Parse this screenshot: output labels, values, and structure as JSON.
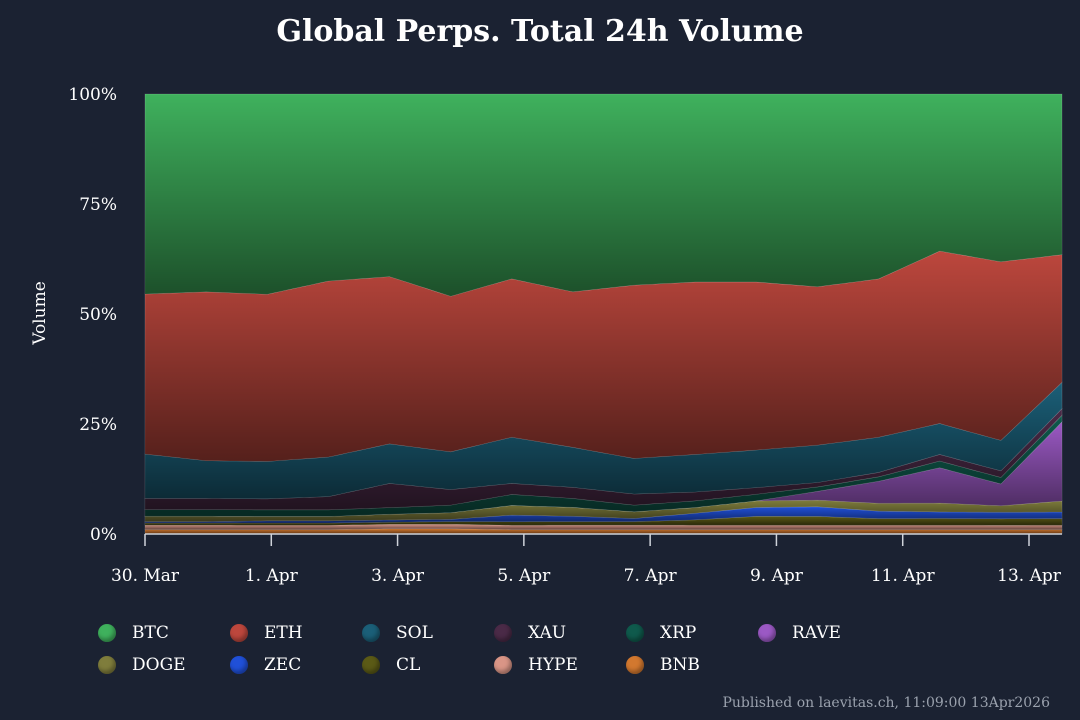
{
  "chart_data": {
    "type": "area",
    "stacked": true,
    "normalized": true,
    "title": "Global Perps. Total 24h Volume",
    "ylabel": "Volume",
    "ylim": [
      0,
      100
    ],
    "yticks": [
      "0%",
      "25%",
      "50%",
      "75%",
      "100%"
    ],
    "xticks": [
      "30. Mar",
      "1. Apr",
      "3. Apr",
      "5. Apr",
      "7. Apr",
      "9. Apr",
      "11. Apr",
      "13. Apr"
    ],
    "x": [
      "30. Mar",
      "31. Mar",
      "1. Apr",
      "2. Apr",
      "3. Apr",
      "4. Apr",
      "5. Apr",
      "6. Apr",
      "7. Apr",
      "8. Apr",
      "9. Apr",
      "10. Apr",
      "11. Apr",
      "12. Apr",
      "13. Apr",
      "13. Apr 11:00"
    ],
    "legend_position": "bottom",
    "series": [
      {
        "name": "BNB",
        "color": "#d2782f",
        "values": [
          1.0,
          1.0,
          1.0,
          1.0,
          1.2,
          1.2,
          1.0,
          1.0,
          1.0,
          1.0,
          1.0,
          1.0,
          1.0,
          1.0,
          1.0,
          1.0
        ]
      },
      {
        "name": "HYPE",
        "color": "#d99586",
        "values": [
          1.0,
          1.0,
          1.0,
          1.0,
          1.0,
          1.0,
          1.0,
          1.0,
          1.0,
          1.0,
          1.0,
          1.0,
          1.0,
          1.0,
          1.0,
          1.0
        ]
      },
      {
        "name": "CL",
        "color": "#5b5a16",
        "values": [
          0.5,
          0.5,
          0.5,
          0.5,
          0.5,
          0.6,
          0.8,
          0.8,
          0.8,
          1.2,
          2.0,
          2.0,
          1.5,
          1.5,
          1.5,
          1.5
        ]
      },
      {
        "name": "ZEC",
        "color": "#2050d8",
        "values": [
          0.3,
          0.3,
          0.5,
          0.5,
          0.5,
          0.5,
          1.5,
          1.2,
          0.7,
          1.5,
          2.0,
          2.2,
          1.7,
          1.5,
          1.5,
          1.5
        ]
      },
      {
        "name": "DOGE",
        "color": "#7f7d3c",
        "values": [
          1.2,
          1.2,
          1.0,
          1.0,
          1.3,
          1.5,
          2.2,
          2.0,
          1.5,
          1.3,
          1.5,
          1.5,
          1.8,
          2.0,
          1.5,
          2.5
        ]
      },
      {
        "name": "RAVE",
        "color": "#9b59c4",
        "values": [
          0.0,
          0.0,
          0.0,
          0.0,
          0.0,
          0.0,
          0.0,
          0.0,
          0.0,
          0.0,
          0.0,
          2.0,
          5.0,
          8.0,
          5.0,
          18.0
        ]
      },
      {
        "name": "XRP",
        "color": "#0f5a4c",
        "values": [
          1.5,
          1.5,
          1.5,
          1.5,
          1.5,
          1.7,
          2.5,
          2.0,
          1.5,
          1.5,
          1.5,
          1.0,
          1.0,
          1.5,
          1.5,
          1.5
        ]
      },
      {
        "name": "XAU",
        "color": "#4a2a47",
        "values": [
          2.5,
          2.5,
          2.5,
          3.0,
          5.5,
          3.5,
          2.5,
          2.5,
          2.5,
          2.0,
          1.5,
          1.0,
          1.0,
          1.5,
          1.5,
          1.5
        ]
      },
      {
        "name": "SOL",
        "color": "#1b5f78",
        "values": [
          10.0,
          8.5,
          8.5,
          9.0,
          9.0,
          8.5,
          10.5,
          9.0,
          8.0,
          8.5,
          8.5,
          8.5,
          8.0,
          7.0,
          7.0,
          6.0
        ]
      },
      {
        "name": "ETH",
        "color": "#bd473d",
        "values": [
          36.0,
          38.0,
          38.0,
          40.0,
          38.0,
          35.0,
          36.0,
          35.0,
          39.0,
          39.0,
          38.0,
          36.0,
          36.0,
          39.0,
          41.0,
          29.0
        ]
      },
      {
        "name": "BTC",
        "color": "#3fb15d",
        "values": [
          45.0,
          44.5,
          45.5,
          42.5,
          41.5,
          45.5,
          42.0,
          44.5,
          43.0,
          42.5,
          42.5,
          43.8,
          42.0,
          35.5,
          38.5,
          36.5
        ]
      }
    ]
  },
  "legend_items": [
    {
      "label": "BTC",
      "color": "#3fb15d"
    },
    {
      "label": "ETH",
      "color": "#bd473d"
    },
    {
      "label": "SOL",
      "color": "#1b5f78"
    },
    {
      "label": "XAU",
      "color": "#4a2a47"
    },
    {
      "label": "XRP",
      "color": "#0f5a4c"
    },
    {
      "label": "RAVE",
      "color": "#9b59c4"
    },
    {
      "label": "DOGE",
      "color": "#7f7d3c"
    },
    {
      "label": "ZEC",
      "color": "#2050d8"
    },
    {
      "label": "CL",
      "color": "#5b5a16"
    },
    {
      "label": "HYPE",
      "color": "#d99586"
    },
    {
      "label": "BNB",
      "color": "#d2782f"
    }
  ],
  "footer": "Published on laevitas.ch, 11:09:00 13Apr2026"
}
